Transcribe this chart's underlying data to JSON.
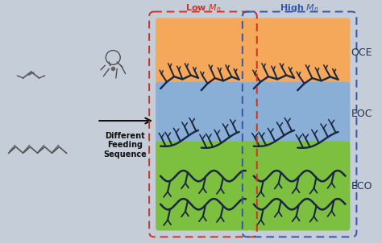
{
  "fig_bg": "#c5cdd9",
  "panel_orange": "#f5a85a",
  "panel_blue": "#8aafd6",
  "panel_green": "#7dc040",
  "border_red": "#cc3322",
  "border_blue_dark": "#3355aa",
  "chain_color": "#1a2640",
  "labels": [
    "OCE",
    "EOC",
    "ECO"
  ],
  "low_Mn_label": "Low $M_n$",
  "high_Mn_label": "High $M_n$",
  "diff_text": "Different\nFeeding\nSequence",
  "arrow_color": "#111111",
  "mol_color": "#555555"
}
